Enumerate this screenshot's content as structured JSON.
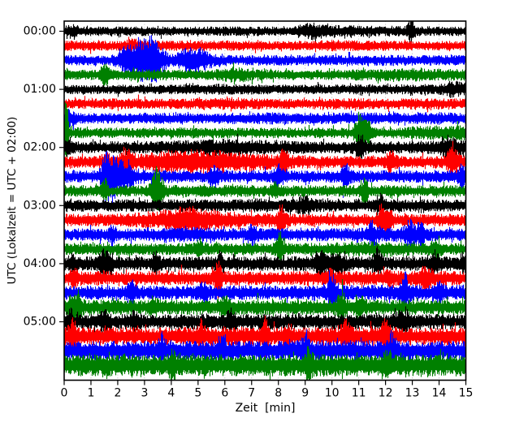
{
  "chart_data": {
    "type": "line",
    "subtype": "seismogram-dayplot",
    "title": "",
    "xlabel": "Zeit  [min]",
    "ylabel": "UTC (Lokalzeit = UTC + 02:00)",
    "xlim": [
      0,
      15
    ],
    "x_tick_labels": [
      "0",
      "1",
      "2",
      "3",
      "4",
      "5",
      "6",
      "7",
      "8",
      "9",
      "10",
      "11",
      "12",
      "13",
      "14",
      "15"
    ],
    "y_tick_labels": [
      "00:00",
      "01:00",
      "02:00",
      "03:00",
      "04:00",
      "05:00"
    ],
    "minutes_per_line": 15,
    "grid": {
      "vertical": "dotted",
      "horizontal": "none",
      "color": "#b0b0b0"
    },
    "palette": {
      "black": "#000000",
      "red": "#ff0000",
      "blue": "#0000ff",
      "green": "#008000"
    },
    "traces": [
      {
        "start": "00:00",
        "color": "black",
        "env": [
          5.5,
          5,
          5,
          5,
          5,
          5,
          5,
          5,
          5,
          6.5,
          7,
          6,
          5.5,
          5.5,
          5,
          5
        ],
        "events": [
          {
            "t": 12.95,
            "a": 10,
            "w": 0.08
          },
          {
            "t": 9.2,
            "a": 3,
            "w": 0.3
          },
          {
            "t": 0.3,
            "a": 3,
            "w": 0.15
          }
        ]
      },
      {
        "start": "00:15",
        "color": "red",
        "env": [
          5.5,
          5.5,
          5,
          5,
          5.5,
          5.5,
          5.5,
          5,
          5,
          5.5,
          6,
          5.5,
          5.5,
          5,
          5,
          5.5
        ],
        "events": [
          {
            "t": 2.6,
            "a": 3,
            "w": 0.25
          }
        ]
      },
      {
        "start": "00:30",
        "color": "blue",
        "env": [
          5.5,
          5.5,
          6,
          7.5,
          6.5,
          6,
          5.5,
          5.5,
          5.5,
          5.5,
          5.5,
          5.5,
          6,
          5.5,
          5.5,
          5.5
        ],
        "events": [
          {
            "t": 2.9,
            "a": 14,
            "w": 0.4
          },
          {
            "t": 3.35,
            "a": 11,
            "w": 0.25
          },
          {
            "t": 2.35,
            "a": 8,
            "w": 0.15
          },
          {
            "t": 5.0,
            "a": 8,
            "w": 0.3
          },
          {
            "t": 4.5,
            "a": 5,
            "w": 0.2
          }
        ]
      },
      {
        "start": "00:45",
        "color": "green",
        "env": [
          6,
          5.5,
          5.5,
          6,
          5.5,
          5.5,
          6,
          6,
          5.5,
          5.5,
          5.5,
          6,
          6.5,
          7,
          6.5,
          6
        ],
        "events": [
          {
            "t": 1.5,
            "a": 9,
            "w": 0.1
          },
          {
            "t": 6.4,
            "a": 3,
            "w": 0.3
          }
        ]
      },
      {
        "start": "01:00",
        "color": "black",
        "env": [
          5,
          5,
          5,
          5,
          5,
          5.5,
          6,
          5.5,
          5,
          5,
          5,
          5.5,
          5,
          5.5,
          5.5,
          5
        ],
        "events": [
          {
            "t": 14.6,
            "a": 4,
            "w": 0.25
          }
        ]
      },
      {
        "start": "01:15",
        "color": "red",
        "env": [
          5.5,
          5.5,
          6,
          5.5,
          5.5,
          6,
          6.5,
          6,
          5.5,
          5.5,
          6,
          6,
          5.5,
          6,
          6,
          5.5
        ],
        "events": []
      },
      {
        "start": "01:30",
        "color": "blue",
        "env": [
          6,
          5.5,
          5.5,
          6,
          6,
          5.5,
          6,
          6,
          6.5,
          6,
          6,
          6.5,
          6,
          6,
          6.5,
          6
        ],
        "events": [
          {
            "t": 0.2,
            "a": 4,
            "w": 0.15
          }
        ]
      },
      {
        "start": "01:45",
        "color": "green",
        "env": [
          6.5,
          5.5,
          5.5,
          5.5,
          5.5,
          5.5,
          5.5,
          5.5,
          5.5,
          5.5,
          5.5,
          5.5,
          5.5,
          7,
          8,
          8
        ],
        "events": [
          {
            "t": 0.07,
            "a": 36,
            "w": 0.05
          },
          {
            "t": 11.05,
            "a": 18,
            "w": 0.08
          },
          {
            "t": 11.3,
            "a": 13,
            "w": 0.1
          },
          {
            "t": 10.9,
            "a": 8,
            "w": 0.08
          }
        ]
      },
      {
        "start": "02:00",
        "color": "black",
        "env": [
          6.5,
          6.5,
          6.5,
          6.5,
          7,
          8.5,
          9.5,
          8.5,
          7.5,
          7,
          6.5,
          6.5,
          6.5,
          6.5,
          7,
          6.5
        ],
        "events": [
          {
            "t": 11.05,
            "a": 9,
            "w": 0.12
          },
          {
            "t": 14.4,
            "a": 7,
            "w": 0.25
          },
          {
            "t": 0.15,
            "a": 7,
            "w": 0.08
          }
        ]
      },
      {
        "start": "02:15",
        "color": "red",
        "env": [
          6.5,
          6.5,
          7,
          10,
          13.5,
          13.5,
          12.5,
          9.5,
          7.5,
          7,
          6.5,
          6.5,
          6.5,
          6.5,
          6.5,
          6.5
        ],
        "events": [
          {
            "t": 8.2,
            "a": 13,
            "w": 0.1
          },
          {
            "t": 12.2,
            "a": 9,
            "w": 0.12
          },
          {
            "t": 14.5,
            "a": 11,
            "w": 0.15
          },
          {
            "t": 2.3,
            "a": 7,
            "w": 0.15
          },
          {
            "t": 1.55,
            "a": 5,
            "w": 0.1
          }
        ]
      },
      {
        "start": "02:30",
        "color": "blue",
        "env": [
          6.5,
          6.5,
          7.5,
          7.5,
          7,
          6.5,
          6.5,
          6.5,
          6.5,
          6.5,
          6.5,
          6.5,
          6.5,
          6.5,
          6.5,
          6.5
        ],
        "events": [
          {
            "t": 1.55,
            "a": 24,
            "w": 0.1
          },
          {
            "t": 1.8,
            "a": 15,
            "w": 0.15
          },
          {
            "t": 2.2,
            "a": 10,
            "w": 0.25
          },
          {
            "t": 8.0,
            "a": 9,
            "w": 0.1
          },
          {
            "t": 10.5,
            "a": 10,
            "w": 0.12
          },
          {
            "t": 14.85,
            "a": 9,
            "w": 0.1
          },
          {
            "t": 5.6,
            "a": 6,
            "w": 0.12
          }
        ]
      },
      {
        "start": "02:45",
        "color": "green",
        "env": [
          6,
          6,
          6,
          6,
          6.5,
          6.5,
          6.5,
          6.5,
          6,
          6,
          6,
          6.5,
          6.5,
          6,
          6,
          6
        ],
        "events": [
          {
            "t": 1.5,
            "a": 8,
            "w": 0.08
          },
          {
            "t": 3.4,
            "a": 20,
            "w": 0.1
          },
          {
            "t": 3.6,
            "a": 10,
            "w": 0.08
          },
          {
            "t": 11.2,
            "a": 8,
            "w": 0.1
          },
          {
            "t": 7.85,
            "a": 6,
            "w": 0.08
          }
        ]
      },
      {
        "start": "03:00",
        "color": "black",
        "env": [
          6.5,
          6.5,
          6.5,
          6.5,
          6.5,
          6.5,
          7,
          7.5,
          7.5,
          7,
          6.5,
          6.5,
          6.5,
          6.5,
          6.5,
          6.5
        ],
        "events": [
          {
            "t": 11.8,
            "a": 8,
            "w": 0.12
          },
          {
            "t": 9.0,
            "a": 4,
            "w": 0.2
          }
        ]
      },
      {
        "start": "03:15",
        "color": "red",
        "env": [
          6.5,
          6.5,
          7,
          8.5,
          11.5,
          12.5,
          9.5,
          7.5,
          7,
          6.5,
          6.5,
          6.5,
          6.5,
          6.5,
          6.5,
          6.5
        ],
        "events": [
          {
            "t": 8.1,
            "a": 10,
            "w": 0.1
          },
          {
            "t": 11.85,
            "a": 13,
            "w": 0.1
          },
          {
            "t": 12.1,
            "a": 11,
            "w": 0.1
          },
          {
            "t": 4.5,
            "a": 5,
            "w": 0.3
          }
        ]
      },
      {
        "start": "03:30",
        "color": "blue",
        "env": [
          6.5,
          6.5,
          6.5,
          7,
          8,
          8,
          7,
          7,
          7,
          7,
          7,
          7.5,
          8,
          7.5,
          7,
          6.5
        ],
        "events": [
          {
            "t": 7.0,
            "a": 8,
            "w": 0.1
          },
          {
            "t": 11.5,
            "a": 9,
            "w": 0.1
          },
          {
            "t": 12.9,
            "a": 10,
            "w": 0.12
          },
          {
            "t": 13.3,
            "a": 8,
            "w": 0.1
          },
          {
            "t": 1.8,
            "a": 5,
            "w": 0.1
          }
        ]
      },
      {
        "start": "03:45",
        "color": "green",
        "env": [
          6.5,
          6.5,
          6.5,
          6.5,
          6.5,
          6.5,
          6.5,
          6.5,
          6.5,
          6.5,
          7,
          8,
          8.5,
          7,
          6.5,
          6.5
        ],
        "events": [
          {
            "t": 8.05,
            "a": 15,
            "w": 0.08
          },
          {
            "t": 13.9,
            "a": 7,
            "w": 0.1
          },
          {
            "t": 5.0,
            "a": 5,
            "w": 0.1
          }
        ]
      },
      {
        "start": "04:00",
        "color": "black",
        "env": [
          7.5,
          7.5,
          7.5,
          7.5,
          7.5,
          7.5,
          7.5,
          7.5,
          7.5,
          8,
          8.5,
          8,
          7.5,
          7.5,
          7.5,
          7.5
        ],
        "events": [
          {
            "t": 1.45,
            "a": 10,
            "w": 0.1
          },
          {
            "t": 1.7,
            "a": 9,
            "w": 0.08
          },
          {
            "t": 3.4,
            "a": 9,
            "w": 0.08
          },
          {
            "t": 5.8,
            "a": 7,
            "w": 0.08
          },
          {
            "t": 9.6,
            "a": 8,
            "w": 0.15
          },
          {
            "t": 10.2,
            "a": 9,
            "w": 0.12
          },
          {
            "t": 11.7,
            "a": 11,
            "w": 0.1
          },
          {
            "t": 13.8,
            "a": 8,
            "w": 0.12
          },
          {
            "t": 14.9,
            "a": 7,
            "w": 0.08
          },
          {
            "t": 0.3,
            "a": 6,
            "w": 0.08
          }
        ]
      },
      {
        "start": "04:15",
        "color": "red",
        "env": [
          7.5,
          7.5,
          7.5,
          7.5,
          7.5,
          7.5,
          7.5,
          7.5,
          7.5,
          7.5,
          7.5,
          7.5,
          7.5,
          8,
          8,
          7.5
        ],
        "events": [
          {
            "t": 5.75,
            "a": 18,
            "w": 0.08
          },
          {
            "t": 0.35,
            "a": 8,
            "w": 0.08
          },
          {
            "t": 13.5,
            "a": 7,
            "w": 0.15
          },
          {
            "t": 9.9,
            "a": 6,
            "w": 0.08
          },
          {
            "t": 12.1,
            "a": 6,
            "w": 0.1
          }
        ]
      },
      {
        "start": "04:30",
        "color": "blue",
        "env": [
          7.5,
          7.5,
          7.5,
          7.5,
          7.5,
          7.5,
          7.5,
          7.5,
          7.5,
          8,
          8.5,
          8.5,
          8.5,
          8.5,
          8.5,
          8
        ],
        "events": [
          {
            "t": 2.5,
            "a": 8,
            "w": 0.1
          },
          {
            "t": 10.0,
            "a": 14,
            "w": 0.1
          },
          {
            "t": 12.7,
            "a": 15,
            "w": 0.1
          },
          {
            "t": 5.2,
            "a": 6,
            "w": 0.12
          },
          {
            "t": 14.0,
            "a": 6,
            "w": 0.1
          }
        ]
      },
      {
        "start": "04:45",
        "color": "green",
        "env": [
          8,
          8,
          8,
          8,
          8,
          8,
          8,
          8,
          8,
          8,
          8.5,
          8.5,
          8,
          8,
          8,
          8
        ],
        "events": [
          {
            "t": 0.35,
            "a": 10,
            "w": 0.12
          },
          {
            "t": 0.55,
            "a": 8,
            "w": 0.08
          },
          {
            "t": 10.35,
            "a": 11,
            "w": 0.1
          },
          {
            "t": 11.0,
            "a": 9,
            "w": 0.1
          },
          {
            "t": 6.0,
            "a": 6,
            "w": 0.15
          },
          {
            "t": 3.3,
            "a": 6,
            "w": 0.1
          }
        ]
      },
      {
        "start": "05:00",
        "color": "black",
        "env": [
          8,
          8,
          8,
          8,
          8,
          8,
          8,
          8,
          8,
          8,
          8,
          8,
          8.5,
          8.5,
          8,
          8
        ],
        "events": [
          {
            "t": 0.2,
            "a": 10,
            "w": 0.08
          },
          {
            "t": 1.5,
            "a": 8,
            "w": 0.1
          },
          {
            "t": 12.6,
            "a": 8,
            "w": 0.15
          },
          {
            "t": 6.2,
            "a": 6,
            "w": 0.12
          },
          {
            "t": 2.6,
            "a": 6,
            "w": 0.08
          }
        ]
      },
      {
        "start": "05:15",
        "color": "red",
        "env": [
          9.5,
          9.5,
          9.5,
          9.5,
          9.5,
          10,
          10.5,
          10,
          9.5,
          9.5,
          10,
          10.5,
          10,
          9.5,
          9.5,
          9.5
        ],
        "events": [
          {
            "t": 0.3,
            "a": 11,
            "w": 0.1
          },
          {
            "t": 7.5,
            "a": 15,
            "w": 0.08
          },
          {
            "t": 10.5,
            "a": 9,
            "w": 0.12
          },
          {
            "t": 12.0,
            "a": 10,
            "w": 0.12
          },
          {
            "t": 5.1,
            "a": 8,
            "w": 0.1
          },
          {
            "t": 8.3,
            "a": 7,
            "w": 0.1
          }
        ]
      },
      {
        "start": "05:30",
        "color": "blue",
        "env": [
          10.5,
          10.5,
          10.5,
          10.5,
          10.5,
          10.5,
          10.5,
          10.5,
          10.5,
          11,
          11.5,
          11,
          10.5,
          10.5,
          10.5,
          10.5
        ],
        "events": [
          {
            "t": 3.65,
            "a": 11,
            "w": 0.08
          },
          {
            "t": 9.0,
            "a": 9,
            "w": 0.12
          },
          {
            "t": 12.2,
            "a": 9,
            "w": 0.12
          },
          {
            "t": 5.9,
            "a": 7,
            "w": 0.1
          }
        ]
      },
      {
        "start": "05:45",
        "color": "green",
        "env": [
          11.5,
          11.5,
          11.5,
          11.5,
          11.5,
          11.5,
          11.5,
          11.5,
          11.5,
          11.5,
          12,
          11.5,
          11.5,
          11.5,
          11.5,
          11.5
        ],
        "events": [
          {
            "t": 4.05,
            "a": 11,
            "w": 0.08
          },
          {
            "t": 9.1,
            "a": 10,
            "w": 0.1
          },
          {
            "t": 12.1,
            "a": 10,
            "w": 0.12
          }
        ]
      }
    ]
  }
}
